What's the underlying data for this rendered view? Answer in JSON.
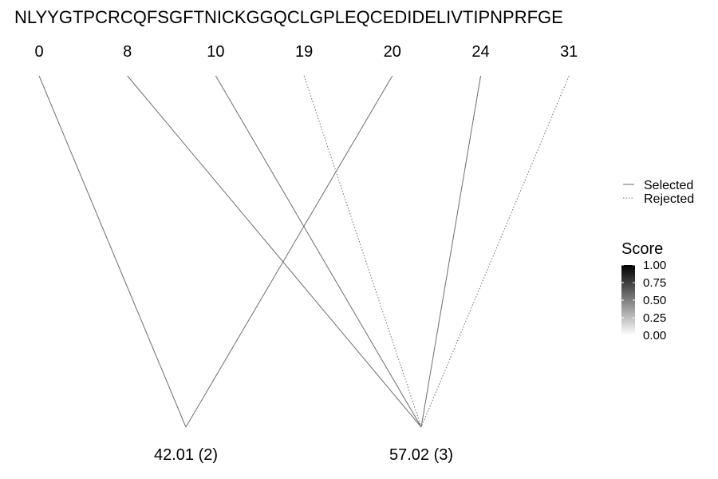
{
  "sequence": "NLYYGTPCRCQFSGFTNICKGGQCLGPLEQCEDIDELIVTIPNPRFGE",
  "positions": [
    "0",
    "8",
    "10",
    "19",
    "20",
    "24",
    "31"
  ],
  "nodes": [
    {
      "id": "n1",
      "label": "42.01 (2)"
    },
    {
      "id": "n2",
      "label": "57.02 (3)"
    }
  ],
  "edges": [
    {
      "from": "0",
      "to": "n1",
      "status": "selected",
      "score": 0.6
    },
    {
      "from": "20",
      "to": "n1",
      "status": "selected",
      "score": 0.6
    },
    {
      "from": "8",
      "to": "n2",
      "status": "selected",
      "score": 0.6
    },
    {
      "from": "10",
      "to": "n2",
      "status": "selected",
      "score": 0.6
    },
    {
      "from": "24",
      "to": "n2",
      "status": "selected",
      "score": 0.6
    },
    {
      "from": "19",
      "to": "n2",
      "status": "rejected",
      "score": 0.6
    },
    {
      "from": "31",
      "to": "n2",
      "status": "rejected",
      "score": 0.6
    }
  ],
  "legend": {
    "selected_label": "Selected",
    "rejected_label": "Rejected"
  },
  "score_legend": {
    "title": "Score",
    "ticks": [
      "1.00",
      "0.75",
      "0.50",
      "0.25",
      "0.00"
    ],
    "high_color": "#000000",
    "low_color": "#ffffff"
  },
  "colors": {
    "line": "#6e6e6e"
  }
}
